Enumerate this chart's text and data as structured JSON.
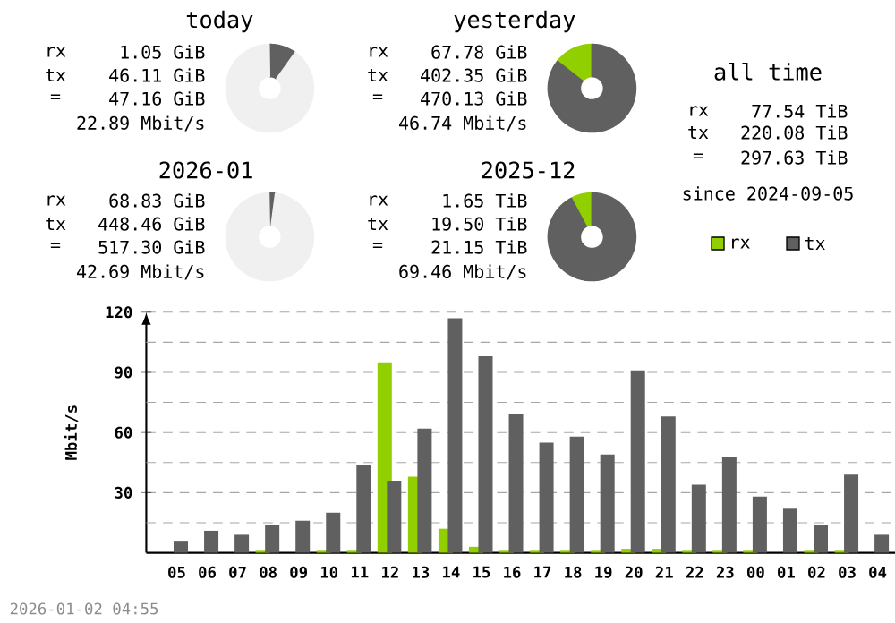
{
  "chart_data": [
    {
      "type": "donut",
      "title": "today",
      "categories": [
        null,
        null,
        null
      ],
      "values": [
        null,
        9.81,
        89.97
      ],
      "colors": [
        "#92cf00",
        "#606060",
        "#f0f0f0"
      ],
      "annotations": [
        "rx",
        "1.05 GiB",
        "tx",
        "46.11 GiB",
        "=",
        "47.16 GiB",
        "22.89 Mbit/s"
      ]
    },
    {
      "type": "donut",
      "title": "yesterday",
      "categories": [
        null,
        null,
        null
      ],
      "values": [
        14.42,
        85.58,
        0
      ],
      "colors": [
        "#92cf00",
        "#606060",
        "#f0f0f0"
      ],
      "annotations": [
        "rx",
        "67.78 GiB",
        "tx",
        "402.35 GiB",
        "=",
        "470.13 GiB",
        "46.74 Mbit/s"
      ]
    },
    {
      "type": "donut",
      "title": "2026-01",
      "categories": [
        null,
        null,
        null
      ],
      "values": [
        null,
        2.07,
        97.61
      ],
      "colors": [
        "#92cf00",
        "#606060",
        "#f0f0f0"
      ],
      "annotations": [
        "rx",
        "68.83 GiB",
        "tx",
        "448.46 GiB",
        "=",
        "517.30 GiB",
        "42.69 Mbit/s"
      ]
    },
    {
      "type": "donut",
      "title": "2025-12",
      "categories": [
        null,
        null,
        null
      ],
      "values": [
        7.8,
        92.2,
        0
      ],
      "colors": [
        "#92cf00",
        "#606060",
        "#f0f0f0"
      ],
      "annotations": [
        "rx",
        "1.65 TiB",
        "tx",
        "19.50 TiB",
        "=",
        "21.15 TiB",
        "69.46 Mbit/s"
      ]
    },
    {
      "type": "other",
      "title": "all time",
      "annotations": [
        "rx",
        "77.54 TiB",
        "tx",
        "220.08 TiB",
        "=",
        "297.63 TiB",
        "since 2024-09-05"
      ]
    },
    {
      "type": "bar",
      "ylabel": "Mbit/s",
      "categories": [
        "05",
        "06",
        "07",
        "08",
        "09",
        "10",
        "11",
        "12",
        "13",
        "14",
        "15",
        "16",
        "17",
        "18",
        "19",
        "20",
        "21",
        "22",
        "23",
        "00",
        "01",
        "02",
        "03",
        "04"
      ],
      "series": [
        {
          "name": "rx",
          "color": "#92cf00",
          "values": [
            0,
            0,
            0,
            1,
            0,
            1,
            1,
            95,
            38,
            12,
            3,
            1,
            1,
            1,
            1,
            2,
            2,
            1,
            1,
            1,
            0,
            1,
            1,
            0
          ]
        },
        {
          "name": "tx",
          "color": "#606060",
          "values": [
            6,
            11,
            9,
            14,
            16,
            20,
            44,
            36,
            62,
            117,
            98,
            69,
            55,
            58,
            49,
            91,
            68,
            34,
            48,
            28,
            22,
            14,
            39,
            9
          ]
        }
      ],
      "ylim": [
        0,
        120
      ],
      "yticks": [
        {
          "value": 15,
          "label": null
        },
        30,
        {
          "value": 45,
          "label": null
        },
        60,
        {
          "value": 75,
          "label": null
        },
        90,
        {
          "value": 105,
          "label": null
        },
        120
      ],
      "grid": "y",
      "legend": "top right",
      "annotations": [
        "2026-01-02 04:55"
      ]
    }
  ]
}
